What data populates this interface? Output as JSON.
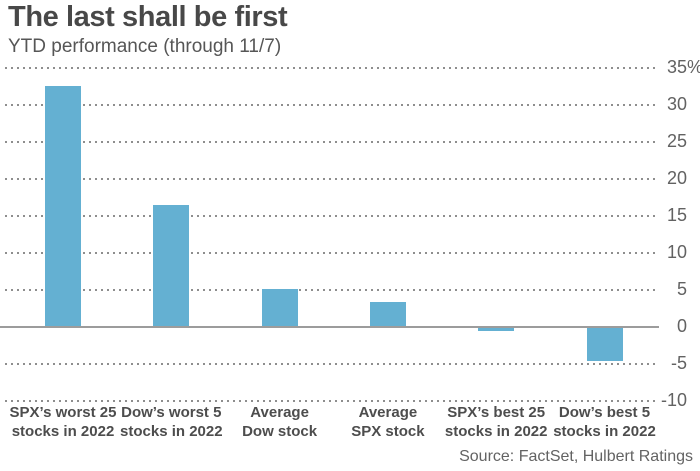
{
  "chart_data": {
    "type": "bar",
    "title": "The last shall be first",
    "subtitle": "YTD performance (through 11/7)",
    "source": "Source: FactSet, Hulbert Ratings",
    "categories": [
      "SPX’s worst 25 stocks in 2022",
      "Dow’s worst 5 stocks in 2022",
      "Average Dow stock",
      "Average SPX stock",
      "SPX’s best 25 stocks in 2022",
      "Dow’s best 5 stocks in 2022"
    ],
    "category_label_lines": [
      [
        "SPX’s worst 25",
        "stocks in 2022"
      ],
      [
        "Dow’s worst 5",
        "stocks in 2022"
      ],
      [
        "Average",
        "Dow stock"
      ],
      [
        "Average",
        "SPX stock"
      ],
      [
        "SPX’s best 25",
        "stocks in 2022"
      ],
      [
        "Dow’s best 5",
        "stocks in 2022"
      ]
    ],
    "values": [
      32.6,
      16.5,
      5.1,
      3.4,
      -0.6,
      -4.6
    ],
    "unit": "%",
    "ylim": [
      -10,
      35
    ],
    "ytick_interval": 5,
    "yticks": [
      {
        "value": 35,
        "label": "35",
        "suffix": "%"
      },
      {
        "value": 30,
        "label": "30"
      },
      {
        "value": 25,
        "label": "25"
      },
      {
        "value": 20,
        "label": "20"
      },
      {
        "value": 15,
        "label": "15"
      },
      {
        "value": 10,
        "label": "10"
      },
      {
        "value": 5,
        "label": "5"
      },
      {
        "value": 0,
        "label": "0"
      },
      {
        "value": -5,
        "label": "-5"
      },
      {
        "value": -10,
        "label": "-10"
      }
    ],
    "grid": "horizontal-dotted",
    "legend": "none",
    "ytick_label_position": "right",
    "bar_color": "#64b0d2",
    "zero_line_color": "#9c9c9c",
    "gridline_color": "#8e8e8e"
  }
}
